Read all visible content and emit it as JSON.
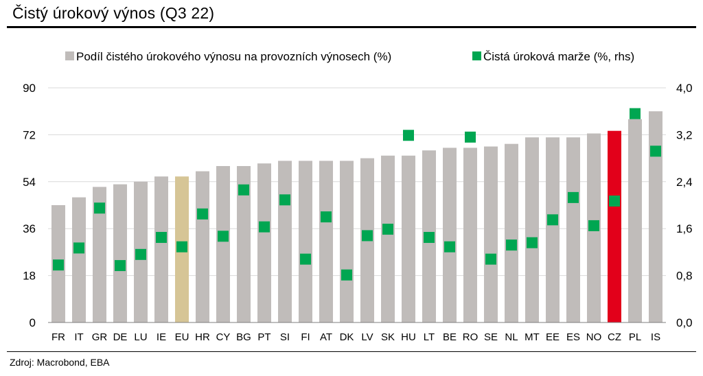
{
  "title": "Čistý úrokový výnos (Q3 22)",
  "source": "Zdroj: Macrobond, EBA",
  "colors": {
    "bar_default": "#c0bcba",
    "bar_eu": "#d6c596",
    "bar_cz": "#e2001a",
    "marker": "#00a651",
    "grid": "#d9d9d9"
  },
  "chart_data": {
    "type": "bar",
    "legend_position": "top",
    "grid": true,
    "categories": [
      "FR",
      "IT",
      "GR",
      "DE",
      "LU",
      "IE",
      "EU",
      "HR",
      "CY",
      "BG",
      "PT",
      "SI",
      "FI",
      "AT",
      "DK",
      "LV",
      "SK",
      "HU",
      "LT",
      "BE",
      "RO",
      "SE",
      "NL",
      "MT",
      "EE",
      "ES",
      "NO",
      "CZ",
      "PL",
      "IS"
    ],
    "series": [
      {
        "name": "Podíl čistého úrokového výnosu na provozních výnosech (%)",
        "type": "bar",
        "axis": "left",
        "values": [
          45,
          48,
          52,
          53,
          54,
          56,
          56,
          58,
          60,
          60,
          61,
          62,
          62,
          62,
          62,
          63,
          64,
          64,
          66,
          67,
          67,
          67.5,
          68.5,
          71,
          71,
          71,
          72.5,
          73.5,
          78,
          81
        ]
      },
      {
        "name": "Čistá úroková marže (%, rhs)",
        "type": "scatter",
        "axis": "right",
        "values": [
          0.98,
          1.27,
          1.95,
          0.97,
          1.16,
          1.45,
          1.29,
          1.85,
          1.47,
          2.26,
          1.63,
          2.09,
          1.08,
          1.8,
          0.81,
          1.48,
          1.59,
          3.19,
          1.45,
          1.29,
          3.16,
          1.08,
          1.32,
          1.36,
          1.75,
          2.13,
          1.65,
          2.07,
          3.56,
          2.92
        ]
      }
    ],
    "y_left": {
      "min": 0,
      "max": 90,
      "ticks": [
        "0",
        "18",
        "36",
        "54",
        "72",
        "90"
      ]
    },
    "y_right": {
      "min": 0,
      "max": 4.0,
      "ticks": [
        "0,0",
        "0,8",
        "1,6",
        "2,4",
        "3,2",
        "4,0"
      ]
    }
  }
}
